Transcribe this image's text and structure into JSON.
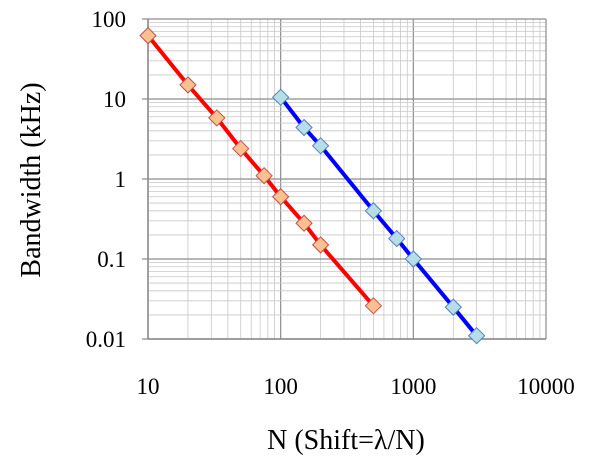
{
  "chart_data": {
    "type": "scatter",
    "title": "",
    "xlabel": "N (Shift=λ/N)",
    "ylabel": "Bandwidth (kHz)",
    "xscale": "log",
    "yscale": "log",
    "xlim": [
      10,
      10000
    ],
    "ylim": [
      0.01,
      100
    ],
    "x_ticks": [
      "10",
      "100",
      "1000",
      "10000"
    ],
    "y_ticks": [
      "100",
      "10",
      "1",
      "0.1",
      "0.01"
    ],
    "grid": true,
    "legend": "none",
    "series": [
      {
        "color": "#ff0000",
        "marker_fill": "#fac090",
        "marker_edge": "#c0504d",
        "marker": "diamond",
        "x": [
          10,
          20,
          33,
          50,
          75,
          100,
          150,
          200,
          500
        ],
        "y": [
          62,
          15,
          5.8,
          2.4,
          1.1,
          0.6,
          0.28,
          0.15,
          0.026
        ]
      },
      {
        "color": "#0000ff",
        "marker_fill": "#b7dee8",
        "marker_edge": "#4f81bd",
        "marker": "diamond",
        "x": [
          100,
          150,
          200,
          500,
          750,
          1000,
          2000,
          3000
        ],
        "y": [
          10.5,
          4.4,
          2.6,
          0.4,
          0.18,
          0.1,
          0.025,
          0.011
        ]
      }
    ]
  }
}
